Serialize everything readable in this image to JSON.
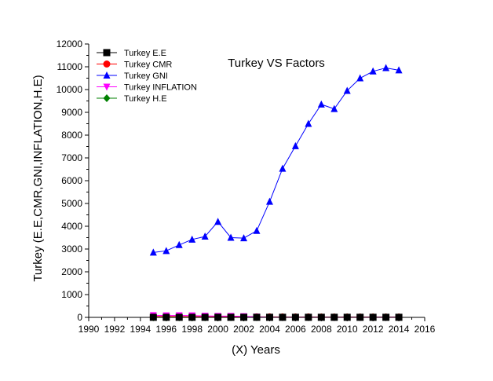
{
  "chart_data": {
    "type": "line",
    "title": "Turkey VS Factors",
    "xlabel": "(X) Years",
    "ylabel": "Turkey (E.E,CMR,GNI,INFLATION,H.E)",
    "xlim": [
      1990,
      2016
    ],
    "ylim": [
      0,
      12000
    ],
    "xticks": [
      1990,
      1992,
      1994,
      1996,
      1998,
      2000,
      2002,
      2004,
      2006,
      2008,
      2010,
      2012,
      2014,
      2016
    ],
    "yticks": [
      0,
      1000,
      2000,
      3000,
      4000,
      5000,
      6000,
      7000,
      8000,
      9000,
      10000,
      11000,
      12000
    ],
    "x": [
      1995,
      1996,
      1997,
      1998,
      1999,
      2000,
      2001,
      2002,
      2003,
      2004,
      2005,
      2006,
      2007,
      2008,
      2009,
      2010,
      2011,
      2012,
      2013,
      2014
    ],
    "legend_position": "top-left",
    "grid": false,
    "series": [
      {
        "name": "Turkey E.E",
        "color": "#000000",
        "marker": "square",
        "values": [
          3,
          3,
          3,
          3,
          3,
          3,
          3,
          3,
          3,
          3,
          3,
          3,
          3,
          3,
          3,
          3,
          3,
          3,
          3,
          3
        ]
      },
      {
        "name": "Turkey CMR",
        "color": "#ff0000",
        "marker": "circle",
        "values": [
          40,
          37,
          34,
          31,
          29,
          27,
          25,
          23,
          21,
          20,
          18,
          17,
          16,
          15,
          14,
          14,
          13,
          13,
          12,
          12
        ]
      },
      {
        "name": "Turkey GNI",
        "color": "#0000ff",
        "marker": "triangle-up",
        "values": [
          2850,
          2920,
          3180,
          3420,
          3550,
          4200,
          3500,
          3480,
          3800,
          5080,
          6530,
          7520,
          8500,
          9350,
          9150,
          9950,
          10500,
          10800,
          10950,
          10850
        ]
      },
      {
        "name": "Turkey INFLATION",
        "color": "#ff00ff",
        "marker": "triangle-down",
        "values": [
          89,
          80,
          85,
          83,
          64,
          55,
          54,
          45,
          25,
          10,
          8,
          10,
          9,
          10,
          6,
          9,
          6,
          9,
          8,
          9
        ]
      },
      {
        "name": "Turkey H.E",
        "color": "#008000",
        "marker": "diamond",
        "values": [
          2,
          2,
          2,
          2,
          2,
          3,
          3,
          3,
          3,
          3,
          3,
          3,
          3,
          3,
          3,
          3,
          3,
          3,
          3,
          3
        ]
      }
    ]
  }
}
